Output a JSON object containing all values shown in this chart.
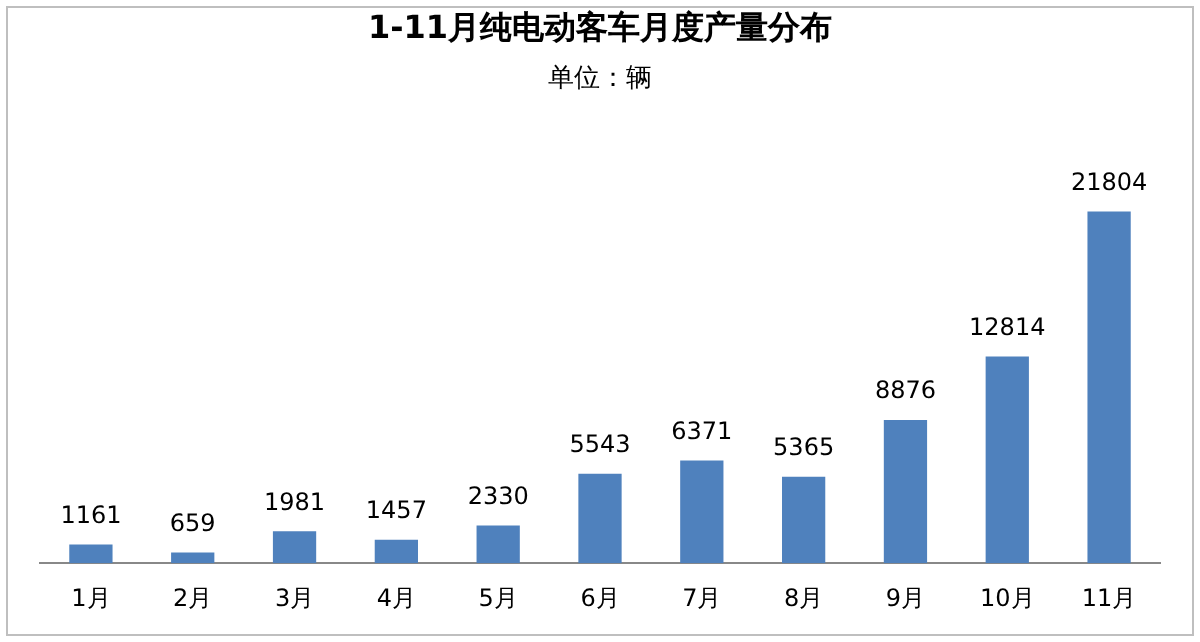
{
  "chart_data": {
    "type": "bar",
    "title": "1-11月纯电动客车月度产量分布",
    "subtitle": "单位：辆",
    "categories": [
      "1月",
      "2月",
      "3月",
      "4月",
      "5月",
      "6月",
      "7月",
      "8月",
      "9月",
      "10月",
      "11月"
    ],
    "values": [
      1161,
      659,
      1981,
      1457,
      2330,
      5543,
      6371,
      5365,
      8876,
      12814,
      21804
    ],
    "color": "#4f81bd",
    "data_labels": true,
    "grid": false,
    "legend": false
  }
}
